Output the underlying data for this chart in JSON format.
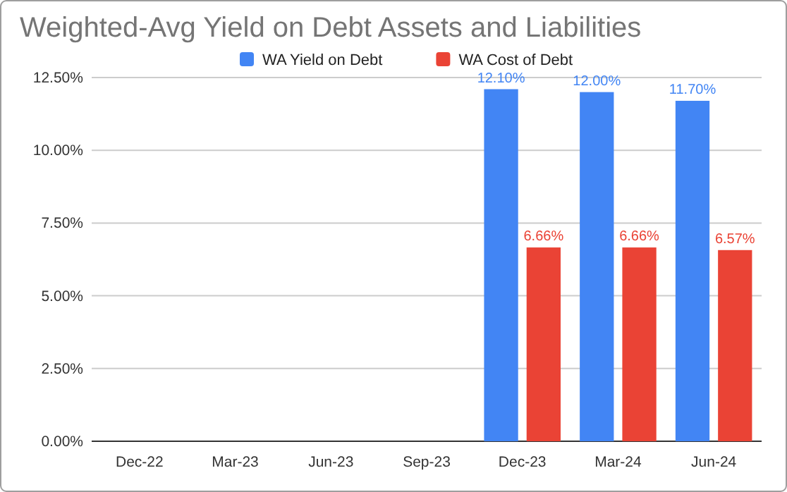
{
  "chart_data": {
    "type": "bar",
    "title": "Weighted-Avg Yield on Debt Assets and Liabilities",
    "categories": [
      "Dec-22",
      "Mar-23",
      "Jun-23",
      "Sep-23",
      "Dec-23",
      "Mar-24",
      "Jun-24"
    ],
    "series": [
      {
        "name": "WA Yield on Debt",
        "color": "#4285f4",
        "values": [
          null,
          null,
          null,
          null,
          12.1,
          12.0,
          11.7
        ],
        "value_labels": [
          null,
          null,
          null,
          null,
          "12.10%",
          "12.00%",
          "11.70%"
        ]
      },
      {
        "name": "WA Cost of Debt",
        "color": "#ea4335",
        "values": [
          null,
          null,
          null,
          null,
          6.66,
          6.66,
          6.57
        ],
        "value_labels": [
          null,
          null,
          null,
          null,
          "6.66%",
          "6.66%",
          "6.57%"
        ]
      }
    ],
    "ylim": [
      0,
      12.5
    ],
    "yticks": [
      {
        "value": 0,
        "label": "0.00%"
      },
      {
        "value": 2.5,
        "label": "2.50%"
      },
      {
        "value": 5,
        "label": "5.00%"
      },
      {
        "value": 7.5,
        "label": "7.50%"
      },
      {
        "value": 10,
        "label": "10.00%"
      },
      {
        "value": 12.5,
        "label": "12.50%"
      }
    ],
    "grid": "y",
    "legend": "top"
  }
}
